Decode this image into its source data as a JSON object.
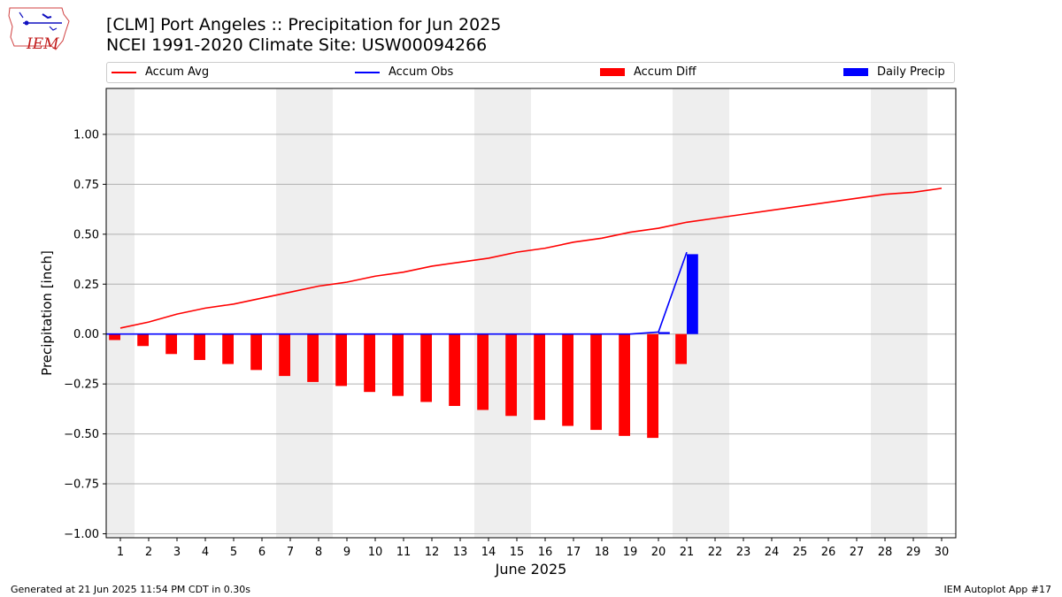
{
  "header": {
    "title_line1": "[CLM] Port Angeles :: Precipitation for Jun 2025",
    "title_line2": "NCEI 1991-2020 Climate Site: USW00094266",
    "logo_text": "IEM"
  },
  "legend": {
    "accum_avg": "Accum Avg",
    "accum_obs": "Accum Obs",
    "accum_diff": "Accum Diff",
    "daily_precip": "Daily Precip"
  },
  "footer": {
    "generated": "Generated at 21 Jun 2025 11:54 PM CDT in 0.30s",
    "app": "IEM Autoplot App #17"
  },
  "colors": {
    "avg": "#ff0000",
    "obs": "#0000ff",
    "diff": "#ff0000",
    "daily": "#0000ff",
    "weekend_shade": "#eeeeee",
    "grid": "#b0b0b0"
  },
  "chart_data": {
    "type": "bar",
    "xlabel": "June 2025",
    "ylabel": "Precipitation [inch]",
    "ylim": [
      -1.02,
      1.23
    ],
    "yticks": [
      1.0,
      0.75,
      0.5,
      0.25,
      0.0,
      -0.25,
      -0.5,
      -0.75,
      -1.0
    ],
    "ytick_labels": [
      "1.00",
      "0.75",
      "0.50",
      "0.25",
      "0.00",
      "−0.25",
      "−0.50",
      "−0.75",
      "−1.00"
    ],
    "xlim": [
      0.5,
      30.5
    ],
    "x": [
      1,
      2,
      3,
      4,
      5,
      6,
      7,
      8,
      9,
      10,
      11,
      12,
      13,
      14,
      15,
      16,
      17,
      18,
      19,
      20,
      21,
      22,
      23,
      24,
      25,
      26,
      27,
      28,
      29,
      30
    ],
    "grid": "horizontal",
    "legend_position": "top",
    "weekend_shading": [
      [
        1,
        1
      ],
      [
        7,
        8
      ],
      [
        14,
        15
      ],
      [
        21,
        22
      ],
      [
        28,
        29
      ]
    ],
    "series": [
      {
        "name": "Accum Avg",
        "type": "line",
        "x": [
          1,
          2,
          3,
          4,
          5,
          6,
          7,
          8,
          9,
          10,
          11,
          12,
          13,
          14,
          15,
          16,
          17,
          18,
          19,
          20,
          21,
          22,
          23,
          24,
          25,
          26,
          27,
          28,
          29,
          30
        ],
        "values": [
          0.03,
          0.06,
          0.1,
          0.13,
          0.15,
          0.18,
          0.21,
          0.24,
          0.26,
          0.29,
          0.31,
          0.34,
          0.36,
          0.38,
          0.41,
          0.43,
          0.46,
          0.48,
          0.51,
          0.53,
          0.56,
          0.58,
          0.6,
          0.62,
          0.64,
          0.66,
          0.68,
          0.7,
          0.71,
          0.73
        ]
      },
      {
        "name": "Accum Obs",
        "type": "line",
        "x": [
          1,
          2,
          3,
          4,
          5,
          6,
          7,
          8,
          9,
          10,
          11,
          12,
          13,
          14,
          15,
          16,
          17,
          18,
          19,
          20,
          21
        ],
        "values": [
          0,
          0,
          0,
          0,
          0,
          0,
          0,
          0,
          0,
          0,
          0,
          0,
          0,
          0,
          0,
          0,
          0,
          0,
          0,
          0.01,
          0.41
        ]
      },
      {
        "name": "Accum Diff",
        "type": "bar",
        "x": [
          1,
          2,
          3,
          4,
          5,
          6,
          7,
          8,
          9,
          10,
          11,
          12,
          13,
          14,
          15,
          16,
          17,
          18,
          19,
          20,
          21
        ],
        "values": [
          -0.03,
          -0.06,
          -0.1,
          -0.13,
          -0.15,
          -0.18,
          -0.21,
          -0.24,
          -0.26,
          -0.29,
          -0.31,
          -0.34,
          -0.36,
          -0.38,
          -0.41,
          -0.43,
          -0.46,
          -0.48,
          -0.51,
          -0.52,
          -0.15
        ]
      },
      {
        "name": "Daily Precip",
        "type": "bar",
        "x": [
          1,
          2,
          3,
          4,
          5,
          6,
          7,
          8,
          9,
          10,
          11,
          12,
          13,
          14,
          15,
          16,
          17,
          18,
          19,
          20,
          21
        ],
        "values": [
          0,
          0,
          0,
          0,
          0,
          0,
          0,
          0,
          0,
          0,
          0,
          0,
          0,
          0,
          0,
          0,
          0,
          0,
          0,
          0.01,
          0.4
        ]
      }
    ]
  }
}
